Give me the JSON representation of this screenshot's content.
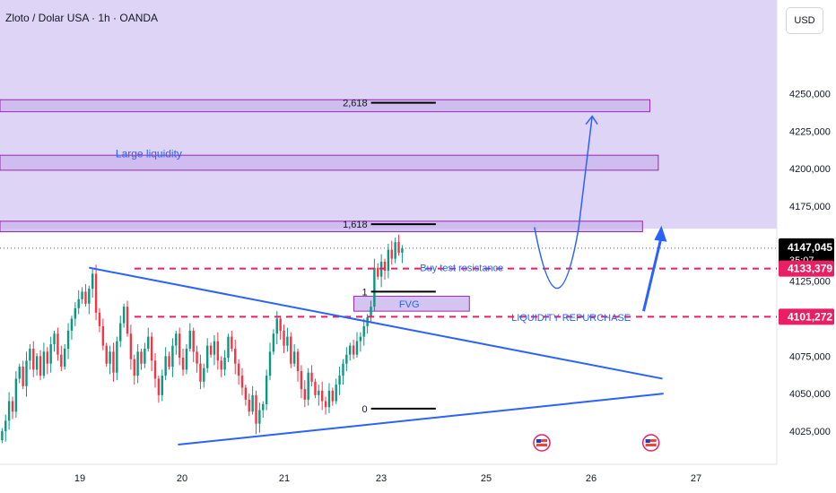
{
  "header": {
    "symbol": "Zloto / Dolar USA · 1h · OANDA",
    "currency": "USD"
  },
  "colors": {
    "up": "#089981",
    "down": "#f23645",
    "trend": "#2962ff",
    "zone_fill": "#c9b7ec",
    "zone_border": "#9c27b0",
    "level": "#e91e63",
    "annotation": "#2962ff"
  },
  "chart_data": {
    "type": "candlestick",
    "instrument": "XAU/USD",
    "timeframe": "1h",
    "ylim": [
      4015,
      4275
    ],
    "y_ticks": [
      {
        "value": 4025,
        "label": "4025,000"
      },
      {
        "value": 4050,
        "label": "4050,000"
      },
      {
        "value": 4075,
        "label": "4075,000"
      },
      {
        "value": 4100,
        "label": "4100,000"
      },
      {
        "value": 4125,
        "label": "4125,000"
      },
      {
        "value": 4150,
        "label": "4150,000"
      },
      {
        "value": 4175,
        "label": "4175,000"
      },
      {
        "value": 4200,
        "label": "4200,000"
      },
      {
        "value": 4225,
        "label": "4225,000"
      },
      {
        "value": 4250,
        "label": "4250,000"
      }
    ],
    "x_ticks": [
      {
        "t": 1,
        "label": "19"
      },
      {
        "t": 2,
        "label": "20"
      },
      {
        "t": 3,
        "label": "21"
      },
      {
        "t": 4,
        "label": "23"
      },
      {
        "t": 5,
        "label": "25"
      },
      {
        "t": 6,
        "label": "26"
      },
      {
        "t": 7,
        "label": "27"
      }
    ],
    "anchors": {
      "start": 0.24,
      "end": 4.2
    },
    "closes": [
      4025,
      4032,
      4045,
      4038,
      4060,
      4068,
      4055,
      4072,
      4080,
      4066,
      4075,
      4062,
      4078,
      4070,
      4083,
      4090,
      4076,
      4068,
      4080,
      4092,
      4100,
      4107,
      4113,
      4118,
      4110,
      4120,
      4130,
      4104,
      4095,
      4082,
      4070,
      4078,
      4064,
      4085,
      4097,
      4108,
      4090,
      4073,
      4062,
      4078,
      4070,
      4080,
      4088,
      4072,
      4060,
      4049,
      4062,
      4075,
      4068,
      4082,
      4090,
      4074,
      4066,
      4080,
      4092,
      4078,
      4070,
      4058,
      4067,
      4082,
      4076,
      4085,
      4072,
      4066,
      4074,
      4088,
      4080,
      4070,
      4062,
      4054,
      4046,
      4038,
      4049,
      4030,
      4039,
      4043,
      4062,
      4078,
      4090,
      4100,
      4092,
      4082,
      4088,
      4070,
      4078,
      4065,
      4053,
      4046,
      4064,
      4058,
      4049,
      4052,
      4045,
      4041,
      4052,
      4045,
      4056,
      4062,
      4070,
      4076,
      4082,
      4076,
      4085,
      4088,
      4095,
      4101,
      4108,
      4134,
      4128,
      4138,
      4132,
      4146,
      4140,
      4151,
      4144,
      4147
    ],
    "current_price": {
      "value": 4147.045,
      "label": "4147,045",
      "countdown": "35:07"
    },
    "price_levels": [
      {
        "value": 4133.379,
        "label": "4133,379"
      },
      {
        "value": 4101.272,
        "label": "4101,272"
      }
    ],
    "zones": [
      {
        "top": 4246,
        "bottom": 4238,
        "t_end": 6.56
      },
      {
        "top": 4209,
        "bottom": 4199,
        "t_end": 6.64
      },
      {
        "top": 4165,
        "bottom": 4158,
        "t_end": 6.49
      },
      {
        "top": 4115,
        "bottom": 4105,
        "t_start": 3.68,
        "t_end": 4.84,
        "label": "FVG"
      }
    ],
    "fib_levels": [
      {
        "value": 4244,
        "label": "2,618"
      },
      {
        "value": 4163,
        "label": "1,618"
      },
      {
        "value": 4118,
        "label": "1"
      },
      {
        "value": 4040,
        "label": "0"
      }
    ],
    "annotations": {
      "large_liquidity": "Large liquidity",
      "buy_test_resistance": "Buy test resistance",
      "liquidity_repurchase": "LIQUIDITY REPURCHASE"
    }
  }
}
